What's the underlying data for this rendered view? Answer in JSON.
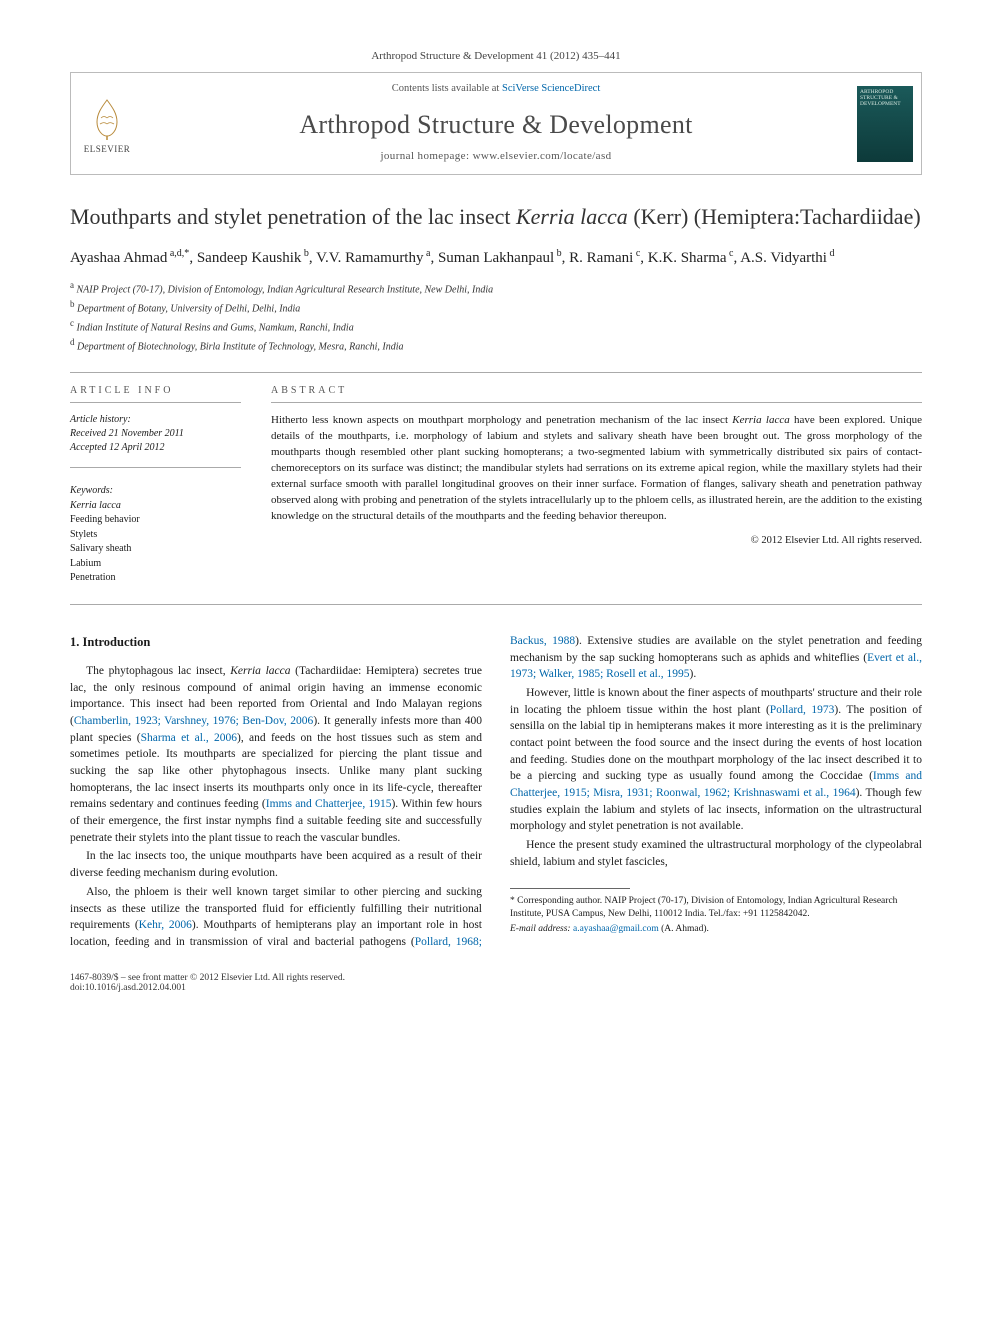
{
  "running_head": "Arthropod Structure & Development 41 (2012) 435–441",
  "header": {
    "contents_prefix": "Contents lists available at ",
    "contents_link": "SciVerse ScienceDirect",
    "journal_name": "Arthropod Structure & Development",
    "homepage_prefix": "journal homepage: ",
    "homepage_url": "www.elsevier.com/locate/asd",
    "publisher_word": "ELSEVIER",
    "cover_text": "ARTHROPOD STRUCTURE & DEVELOPMENT"
  },
  "title": {
    "pre": "Mouthparts and stylet penetration of the lac insect ",
    "species": "Kerria lacca",
    "post": " (Kerr) (Hemiptera:Tachardiidae)"
  },
  "authors": [
    {
      "name": "Ayashaa Ahmad",
      "marks": "a,d,*"
    },
    {
      "name": "Sandeep Kaushik",
      "marks": "b"
    },
    {
      "name": "V.V. Ramamurthy",
      "marks": "a"
    },
    {
      "name": "Suman Lakhanpaul",
      "marks": "b"
    },
    {
      "name": "R. Ramani",
      "marks": "c"
    },
    {
      "name": "K.K. Sharma",
      "marks": "c"
    },
    {
      "name": "A.S. Vidyarthi",
      "marks": "d"
    }
  ],
  "affiliations": [
    {
      "mark": "a",
      "text": "NAIP Project (70-17), Division of Entomology, Indian Agricultural Research Institute, New Delhi, India"
    },
    {
      "mark": "b",
      "text": "Department of Botany, University of Delhi, Delhi, India"
    },
    {
      "mark": "c",
      "text": "Indian Institute of Natural Resins and Gums, Namkum, Ranchi, India"
    },
    {
      "mark": "d",
      "text": "Department of Biotechnology, Birla Institute of Technology, Mesra, Ranchi, India"
    }
  ],
  "info_label": "ARTICLE INFO",
  "abstract_label": "ABSTRACT",
  "history": {
    "label": "Article history:",
    "received": "Received 21 November 2011",
    "accepted": "Accepted 12 April 2012"
  },
  "keywords": {
    "label": "Keywords:",
    "items": [
      "Kerria lacca",
      "Feeding behavior",
      "Stylets",
      "Salivary sheath",
      "Labium",
      "Penetration"
    ]
  },
  "abstract": {
    "pre": "Hitherto less known aspects on mouthpart morphology and penetration mechanism of the lac insect ",
    "species": "Kerria lacca",
    "post": " have been explored. Unique details of the mouthparts, i.e. morphology of labium and stylets and salivary sheath have been brought out. The gross morphology of the mouthparts though resembled other plant sucking homopterans; a two-segmented labium with symmetrically distributed six pairs of contact-chemoreceptors on its surface was distinct; the mandibular stylets had serrations on its extreme apical region, while the maxillary stylets had their external surface smooth with parallel longitudinal grooves on their inner surface. Formation of flanges, salivary sheath and penetration pathway observed along with probing and penetration of the stylets intracellularly up to the phloem cells, as illustrated herein, are the addition to the existing knowledge on the structural details of the mouthparts and the feeding behavior thereupon."
  },
  "copyright": "© 2012 Elsevier Ltd. All rights reserved.",
  "intro_heading": "1. Introduction",
  "intro": {
    "p1a": "The phytophagous lac insect, ",
    "p1species": "Kerria lacca",
    "p1b": " (Tachardiidae: Hemiptera) secretes true lac, the only resinous compound of animal origin having an immense economic importance. This insect had been reported from Oriental and Indo Malayan regions (",
    "p1cite1": "Chamberlin, 1923; Varshney, 1976; Ben-Dov, 2006",
    "p1c": "). It generally infests more than 400 plant species (",
    "p1cite2": "Sharma et al., 2006",
    "p1d": "), and feeds on the host tissues such as stem and sometimes petiole. Its mouthparts are specialized for piercing the plant tissue and sucking the sap like other phytophagous insects. Unlike many plant sucking homopterans, the lac insect inserts its mouthparts only once in its life-cycle, thereafter remains sedentary and continues feeding (",
    "p1cite3": "Imms and Chatterjee, 1915",
    "p1e": "). Within few hours of their emergence, the first instar nymphs find a suitable feeding site and successfully penetrate their stylets into the plant tissue to reach the vascular bundles.",
    "p2": "In the lac insects too, the unique mouthparts have been acquired as a result of their diverse feeding mechanism during evolution.",
    "p3a": "Also, the phloem is their well known target similar to other piercing and sucking insects as these utilize the transported fluid for efficiently fulfilling their nutritional requirements (",
    "p3cite1": "Kehr, 2006",
    "p3b": "). Mouthparts of hemipterans play an important role in host location, feeding and in transmission of viral and bacterial pathogens (",
    "p3cite2": "Pollard, 1968; Backus, 1988",
    "p3c": "). Extensive studies are available on the stylet penetration and feeding mechanism by the sap sucking homopterans such as aphids and whiteflies (",
    "p3cite3": "Evert et al., 1973; Walker, 1985; Rosell et al., 1995",
    "p3d": ").",
    "p4a": "However, little is known about the finer aspects of mouthparts' structure and their role in locating the phloem tissue within the host plant (",
    "p4cite1": "Pollard, 1973",
    "p4b": "). The position of sensilla on the labial tip in hemipterans makes it more interesting as it is the preliminary contact point between the food source and the insect during the events of host location and feeding. Studies done on the mouthpart morphology of the lac insect described it to be a piercing and sucking type as usually found among the Coccidae (",
    "p4cite2": "Imms and Chatterjee, 1915; Misra, 1931; Roonwal, 1962; Krishnaswami et al., 1964",
    "p4c": "). Though few studies explain the labium and stylets of lac insects, information on the ultrastructural morphology and stylet penetration is not available.",
    "p5": "Hence the present study examined the ultrastructural morphology of the clypeolabral shield, labium and stylet fascicles,"
  },
  "footnotes": {
    "corr": "* Corresponding author. NAIP Project (70-17), Division of Entomology, Indian Agricultural Research Institute, PUSA Campus, New Delhi, 110012 India. Tel./fax: +91 1125842042.",
    "email_label": "E-mail address:",
    "email": "a.ayashaa@gmail.com",
    "email_who": " (A. Ahmad)."
  },
  "footer": {
    "left1": "1467-8039/$ – see front matter © 2012 Elsevier Ltd. All rights reserved.",
    "left2": "doi:10.1016/j.asd.2012.04.001"
  },
  "colors": {
    "link": "#0066aa",
    "rule": "#aaaaaa",
    "text": "#1a1a1a",
    "headgrey": "#4a4a4a"
  }
}
